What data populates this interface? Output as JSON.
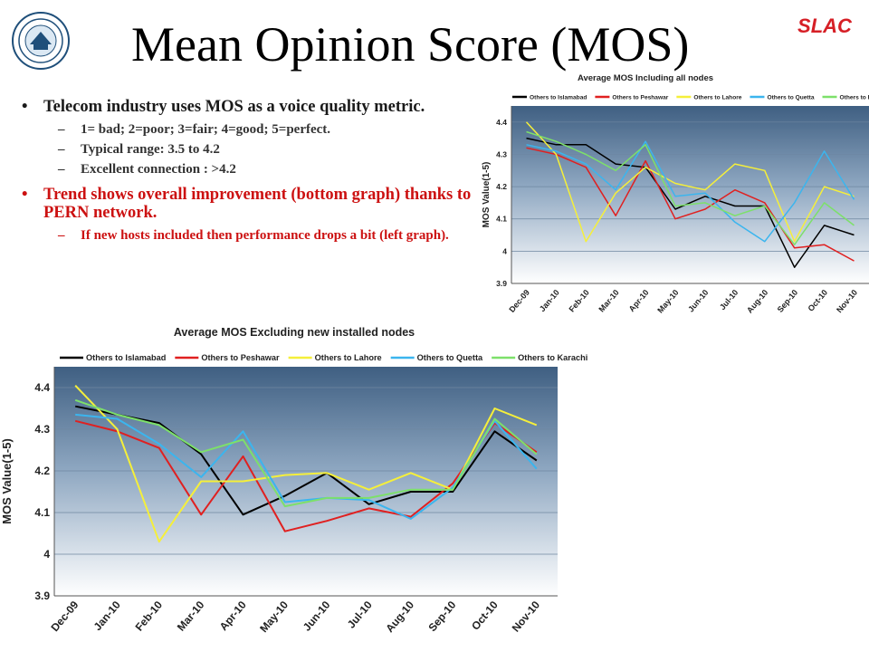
{
  "slide": {
    "title": "Mean Opinion Score (MOS)",
    "brand": "SLAC",
    "bullets": {
      "b1": "Telecom industry uses MOS as a voice quality metric.",
      "b1_subs": [
        "1= bad; 2=poor; 3=fair; 4=good; 5=perfect.",
        "Typical range: 3.5 to 4.2",
        "Excellent  connection : >4.2"
      ],
      "b2": "Trend shows overall improvement (bottom graph) thanks to PERN network.",
      "b2_subs": [
        "If new hosts included then performance drops a bit (left graph)."
      ]
    }
  },
  "chart_data": [
    {
      "type": "line",
      "title": "Average MOS Including all nodes",
      "ylabel": "MOS Value(1-5)",
      "xlabel": "",
      "ylim": [
        3.9,
        4.45
      ],
      "yticks": [
        3.9,
        4,
        4.1,
        4.2,
        4.3,
        4.4
      ],
      "grid": true,
      "legend": "top",
      "categories": [
        "Dec-09",
        "Jan-10",
        "Feb-10",
        "Mar-10",
        "Apr-10",
        "May-10",
        "Jun-10",
        "Jul-10",
        "Aug-10",
        "Sep-10",
        "Oct-10",
        "Nov-10"
      ],
      "series": [
        {
          "name": "Others to Islamabad",
          "color": "#000000",
          "values": [
            4.35,
            4.33,
            4.33,
            4.27,
            4.26,
            4.13,
            4.17,
            4.14,
            4.14,
            3.95,
            4.08,
            4.05
          ]
        },
        {
          "name": "Others to Peshawar",
          "color": "#e02020",
          "values": [
            4.32,
            4.3,
            4.26,
            4.11,
            4.28,
            4.1,
            4.13,
            4.19,
            4.15,
            4.01,
            4.02,
            3.97
          ]
        },
        {
          "name": "Others to Lahore",
          "color": "#f5ef3a",
          "values": [
            4.4,
            4.3,
            4.03,
            4.18,
            4.26,
            4.21,
            4.19,
            4.27,
            4.25,
            4.03,
            4.2,
            4.17
          ]
        },
        {
          "name": "Others to Quetta",
          "color": "#3bb5ee",
          "values": [
            4.33,
            4.31,
            4.27,
            4.19,
            4.34,
            4.17,
            4.18,
            4.09,
            4.03,
            4.15,
            4.31,
            4.16
          ]
        },
        {
          "name": "Others to Karachi",
          "color": "#7de06a",
          "values": [
            4.37,
            4.34,
            4.3,
            4.25,
            4.33,
            4.14,
            4.15,
            4.11,
            4.14,
            4.02,
            4.15,
            4.08
          ]
        }
      ]
    },
    {
      "type": "line",
      "title": "Average MOS Excluding new installed nodes",
      "ylabel": "MOS Value(1-5)",
      "xlabel": "",
      "ylim": [
        3.9,
        4.45
      ],
      "yticks": [
        3.9,
        4,
        4.1,
        4.2,
        4.3,
        4.4
      ],
      "grid": true,
      "legend": "top",
      "categories": [
        "Dec-09",
        "Jan-10",
        "Feb-10",
        "Mar-10",
        "Apr-10",
        "May-10",
        "Jun-10",
        "Jul-10",
        "Aug-10",
        "Sep-10",
        "Oct-10",
        "Nov-10"
      ],
      "series": [
        {
          "name": "Others to Islamabad",
          "color": "#000000",
          "values": [
            4.355,
            4.335,
            4.315,
            4.24,
            4.095,
            4.14,
            4.195,
            4.12,
            4.15,
            4.15,
            4.295,
            4.225
          ]
        },
        {
          "name": "Others to Peshawar",
          "color": "#e02020",
          "values": [
            4.32,
            4.295,
            4.255,
            4.095,
            4.235,
            4.055,
            4.08,
            4.11,
            4.09,
            4.17,
            4.315,
            4.245
          ]
        },
        {
          "name": "Others to Lahore",
          "color": "#f5ef3a",
          "values": [
            4.405,
            4.3,
            4.03,
            4.175,
            4.175,
            4.19,
            4.195,
            4.155,
            4.195,
            4.155,
            4.35,
            4.31
          ]
        },
        {
          "name": "Others to Quetta",
          "color": "#3bb5ee",
          "values": [
            4.335,
            4.325,
            4.265,
            4.185,
            4.295,
            4.125,
            4.135,
            4.13,
            4.085,
            4.16,
            4.32,
            4.205
          ]
        },
        {
          "name": "Others to Karachi",
          "color": "#7de06a",
          "values": [
            4.37,
            4.335,
            4.31,
            4.245,
            4.275,
            4.115,
            4.135,
            4.135,
            4.155,
            4.155,
            4.325,
            4.24
          ]
        }
      ]
    }
  ]
}
